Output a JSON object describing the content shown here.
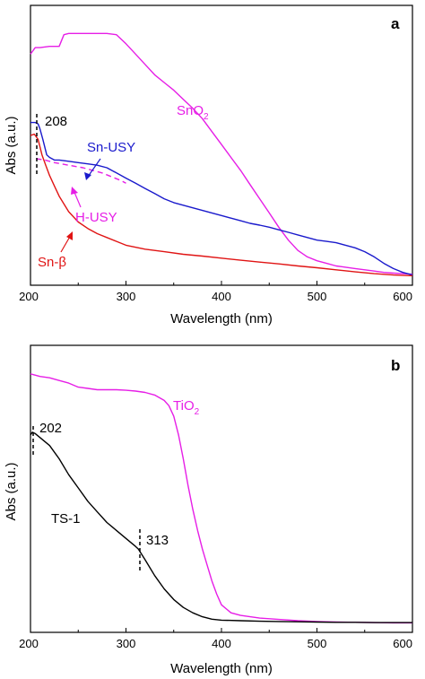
{
  "chart_data": [
    {
      "type": "line",
      "panel_label": "a",
      "xlabel": "Wavelength (nm)",
      "ylabel": "Abs (a.u.)",
      "xlim": [
        200,
        600
      ],
      "ylim": [
        0,
        1
      ],
      "x_ticks": [
        200,
        300,
        400,
        500,
        600
      ],
      "y_tick_labels": false,
      "grid": false,
      "legend": "none (inline labels)",
      "series": [
        {
          "name": "SnO2",
          "label_main": "SnO",
          "label_sub": "2",
          "color": "#e61ee6",
          "dashed": false,
          "x": [
            200,
            205,
            210,
            220,
            230,
            235,
            240,
            250,
            260,
            270,
            280,
            290,
            300,
            310,
            320,
            330,
            340,
            350,
            360,
            370,
            380,
            390,
            400,
            410,
            420,
            430,
            440,
            450,
            460,
            470,
            480,
            490,
            500,
            510,
            520,
            530,
            540,
            550,
            560,
            570,
            580,
            590,
            600
          ],
          "y": [
            0.86,
            0.885,
            0.885,
            0.89,
            0.89,
            0.935,
            0.94,
            0.94,
            0.94,
            0.94,
            0.94,
            0.935,
            0.9,
            0.86,
            0.82,
            0.78,
            0.75,
            0.72,
            0.685,
            0.65,
            0.61,
            0.56,
            0.51,
            0.46,
            0.41,
            0.355,
            0.3,
            0.245,
            0.19,
            0.14,
            0.1,
            0.075,
            0.06,
            0.05,
            0.04,
            0.035,
            0.03,
            0.025,
            0.02,
            0.015,
            0.012,
            0.01,
            0.008
          ]
        },
        {
          "name": "Sn-USY",
          "label": "Sn-USY",
          "color": "#1a1acc",
          "dashed": false,
          "x": [
            200,
            205,
            208,
            210,
            213,
            217,
            220,
            225,
            230,
            240,
            250,
            260,
            270,
            280,
            290,
            300,
            310,
            320,
            330,
            340,
            350,
            360,
            370,
            380,
            390,
            400,
            410,
            420,
            430,
            440,
            450,
            460,
            470,
            480,
            490,
            500,
            510,
            520,
            530,
            540,
            550,
            560,
            570,
            580,
            590,
            600
          ],
          "y": [
            0.595,
            0.595,
            0.59,
            0.57,
            0.53,
            0.47,
            0.46,
            0.45,
            0.45,
            0.445,
            0.44,
            0.435,
            0.43,
            0.42,
            0.4,
            0.38,
            0.36,
            0.34,
            0.32,
            0.3,
            0.285,
            0.275,
            0.265,
            0.255,
            0.245,
            0.235,
            0.225,
            0.215,
            0.205,
            0.198,
            0.19,
            0.18,
            0.17,
            0.16,
            0.15,
            0.14,
            0.135,
            0.13,
            0.12,
            0.11,
            0.095,
            0.075,
            0.05,
            0.03,
            0.015,
            0.005
          ]
        },
        {
          "name": "H-USY",
          "label": "H-USY",
          "color": "#e61ee6",
          "dashed": true,
          "x": [
            206,
            215,
            225,
            240,
            255,
            265,
            275,
            285,
            295,
            300
          ],
          "y": [
            0.455,
            0.45,
            0.44,
            0.43,
            0.42,
            0.41,
            0.4,
            0.385,
            0.37,
            0.36
          ]
        },
        {
          "name": "Sn-β",
          "label": "Sn-β",
          "color": "#e01414",
          "dashed": false,
          "x": [
            200,
            204,
            208,
            212,
            216,
            220,
            225,
            230,
            240,
            250,
            260,
            270,
            280,
            290,
            300,
            320,
            340,
            360,
            380,
            400,
            420,
            440,
            460,
            480,
            500,
            520,
            540,
            560,
            580,
            600
          ],
          "y": [
            0.545,
            0.55,
            0.53,
            0.47,
            0.43,
            0.39,
            0.35,
            0.31,
            0.25,
            0.21,
            0.185,
            0.165,
            0.15,
            0.135,
            0.12,
            0.105,
            0.095,
            0.085,
            0.078,
            0.07,
            0.062,
            0.055,
            0.048,
            0.04,
            0.033,
            0.025,
            0.017,
            0.01,
            0.005,
            0.002
          ]
        }
      ],
      "annotations": [
        {
          "text": "208",
          "x": 208
        }
      ]
    },
    {
      "type": "line",
      "panel_label": "b",
      "xlabel": "Wavelength (nm)",
      "ylabel": "Abs (a.u.)",
      "xlim": [
        200,
        600
      ],
      "ylim": [
        0,
        1
      ],
      "x_ticks": [
        200,
        300,
        400,
        500,
        600
      ],
      "y_tick_labels": false,
      "grid": false,
      "legend": "none (inline labels)",
      "series": [
        {
          "name": "TiO2",
          "label_main": "TiO",
          "label_sub": "2",
          "color": "#e61ee6",
          "dashed": false,
          "x": [
            200,
            210,
            220,
            230,
            240,
            250,
            260,
            270,
            280,
            290,
            300,
            310,
            320,
            330,
            340,
            345,
            350,
            355,
            360,
            365,
            370,
            375,
            380,
            385,
            390,
            395,
            400,
            410,
            420,
            440,
            460,
            480,
            500,
            520,
            540,
            560,
            580,
            600
          ],
          "y": [
            0.94,
            0.93,
            0.925,
            0.915,
            0.905,
            0.89,
            0.885,
            0.88,
            0.88,
            0.88,
            0.878,
            0.875,
            0.87,
            0.86,
            0.84,
            0.82,
            0.78,
            0.71,
            0.62,
            0.52,
            0.43,
            0.35,
            0.28,
            0.22,
            0.16,
            0.11,
            0.07,
            0.04,
            0.03,
            0.02,
            0.015,
            0.01,
            0.007,
            0.005,
            0.004,
            0.003,
            0.002,
            0.002
          ]
        },
        {
          "name": "TS-1",
          "label": "TS-1",
          "color": "#000000",
          "dashed": false,
          "x": [
            200,
            202,
            205,
            210,
            220,
            230,
            240,
            250,
            260,
            270,
            280,
            290,
            300,
            310,
            313,
            320,
            330,
            340,
            350,
            360,
            370,
            380,
            390,
            400,
            420,
            440,
            460,
            480,
            500,
            520,
            540,
            560,
            580,
            600
          ],
          "y": [
            0.71,
            0.72,
            0.715,
            0.7,
            0.67,
            0.62,
            0.56,
            0.51,
            0.46,
            0.42,
            0.38,
            0.35,
            0.32,
            0.29,
            0.28,
            0.24,
            0.18,
            0.13,
            0.09,
            0.06,
            0.04,
            0.025,
            0.016,
            0.012,
            0.01,
            0.008,
            0.007,
            0.006,
            0.005,
            0.004,
            0.004,
            0.003,
            0.003,
            0.003
          ]
        }
      ],
      "annotations": [
        {
          "text": "202",
          "x": 202
        },
        {
          "text": "313",
          "x": 313
        }
      ]
    }
  ]
}
